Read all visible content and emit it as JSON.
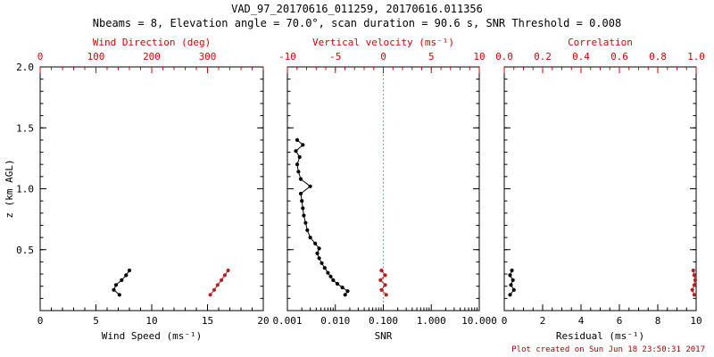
{
  "header": {
    "title": "VAD_97_20170616_011259, 20170616.011356",
    "subtitle": "Nbeams = 8, Elevation angle = 70.0°, scan duration = 90.6 s, SNR Threshold = 0.008"
  },
  "footer": {
    "created": "Plot created on Sun Jun 18 23:50:31 2017"
  },
  "colors": {
    "axis_red": "#dd0000",
    "data_black": "#000000",
    "data_red": "#b22222",
    "refline_red": "#dd5555",
    "footer_red": "#aa0000"
  },
  "y_axis": {
    "label": "z (km AGL)",
    "range": [
      0,
      2
    ],
    "minor_step": 0.1,
    "ticks": [
      {
        "v": 0.0,
        "t": ""
      },
      {
        "v": 0.5,
        "t": "0.5"
      },
      {
        "v": 1.0,
        "t": "1.0"
      },
      {
        "v": 1.5,
        "t": "1.5"
      },
      {
        "v": 2.0,
        "t": "2.0"
      }
    ]
  },
  "chart_data": [
    {
      "id": "wind",
      "type": "scatter",
      "bottom": {
        "label": "Wind Speed (ms⁻¹)",
        "scale": "linear",
        "range": [
          0,
          20
        ],
        "minor_step": 1,
        "ticks": [
          {
            "v": 0,
            "t": "0"
          },
          {
            "v": 5,
            "t": "5"
          },
          {
            "v": 10,
            "t": "10"
          },
          {
            "v": 15,
            "t": "15"
          },
          {
            "v": 20,
            "t": "20"
          }
        ]
      },
      "top": {
        "label": "Wind Direction (deg)",
        "scale": "linear",
        "range": [
          0,
          400
        ],
        "minor_step": 20,
        "ticks": [
          {
            "v": 0,
            "t": "0"
          },
          {
            "v": 100,
            "t": "100"
          },
          {
            "v": 200,
            "t": "200"
          },
          {
            "v": 300,
            "t": "300"
          }
        ]
      },
      "series": [
        {
          "name": "wind-speed",
          "axis": "bottom",
          "color": "#000000",
          "z": [
            0.13,
            0.17,
            0.21,
            0.25,
            0.29,
            0.33
          ],
          "x": [
            7.1,
            6.6,
            6.8,
            7.3,
            7.7,
            8.0
          ]
        },
        {
          "name": "wind-direction",
          "axis": "top",
          "color": "#b22222",
          "z": [
            0.13,
            0.17,
            0.21,
            0.25,
            0.29,
            0.33
          ],
          "x": [
            305,
            312,
            318,
            325,
            331,
            337
          ]
        }
      ]
    },
    {
      "id": "snr",
      "type": "scatter",
      "refline": {
        "axis": "top",
        "v": 0
      },
      "bottom": {
        "label": "SNR",
        "scale": "log",
        "range": [
          0.001,
          10
        ],
        "ticks": [
          {
            "v": 0.001,
            "t": "0.001"
          },
          {
            "v": 0.01,
            "t": "0.010"
          },
          {
            "v": 0.1,
            "t": "0.100"
          },
          {
            "v": 1,
            "t": "1.000"
          },
          {
            "v": 10,
            "t": "10.000"
          }
        ]
      },
      "top": {
        "label": "Vertical velocity (ms⁻¹)",
        "scale": "linear",
        "range": [
          -10,
          10
        ],
        "minor_step": 1,
        "ticks": [
          {
            "v": -10,
            "t": "-10"
          },
          {
            "v": -5,
            "t": "-5"
          },
          {
            "v": 0,
            "t": "0"
          },
          {
            "v": 5,
            "t": "5"
          },
          {
            "v": 10,
            "t": "10"
          }
        ]
      },
      "series": [
        {
          "name": "snr-profile",
          "axis": "bottom",
          "color": "#000000",
          "z": [
            0.13,
            0.16,
            0.19,
            0.22,
            0.25,
            0.28,
            0.31,
            0.35,
            0.39,
            0.43,
            0.47,
            0.51,
            0.55,
            0.6,
            0.66,
            0.72,
            0.78,
            0.84,
            0.9,
            0.96,
            1.02,
            1.08,
            1.14,
            1.2,
            1.26,
            1.31,
            1.36,
            1.4
          ],
          "x": [
            0.016,
            0.018,
            0.014,
            0.011,
            0.009,
            0.008,
            0.007,
            0.006,
            0.0052,
            0.0046,
            0.0042,
            0.0046,
            0.0038,
            0.003,
            0.0026,
            0.0024,
            0.0022,
            0.0021,
            0.002,
            0.0019,
            0.003,
            0.0019,
            0.0017,
            0.0016,
            0.0018,
            0.0015,
            0.0021,
            0.0016
          ]
        },
        {
          "name": "vertical-velocity",
          "axis": "top",
          "color": "#b22222",
          "z": [
            0.13,
            0.17,
            0.21,
            0.25,
            0.29,
            0.33
          ],
          "x": [
            0.3,
            -0.2,
            0.2,
            -0.3,
            0.2,
            -0.2
          ]
        }
      ]
    },
    {
      "id": "residual",
      "type": "scatter",
      "bottom": {
        "label": "Residual (ms⁻¹)",
        "scale": "linear",
        "range": [
          0,
          10
        ],
        "minor_step": 0.5,
        "ticks": [
          {
            "v": 0,
            "t": "0"
          },
          {
            "v": 2,
            "t": "2"
          },
          {
            "v": 4,
            "t": "4"
          },
          {
            "v": 6,
            "t": "6"
          },
          {
            "v": 8,
            "t": "8"
          },
          {
            "v": 10,
            "t": "10"
          }
        ]
      },
      "top": {
        "label": "Correlation",
        "scale": "linear",
        "range": [
          0,
          1
        ],
        "minor_step": 0.05,
        "ticks": [
          {
            "v": 0.0,
            "t": "0.0"
          },
          {
            "v": 0.2,
            "t": "0.2"
          },
          {
            "v": 0.4,
            "t": "0.4"
          },
          {
            "v": 0.6,
            "t": "0.6"
          },
          {
            "v": 0.8,
            "t": "0.8"
          },
          {
            "v": 1.0,
            "t": "1.0"
          }
        ]
      },
      "series": [
        {
          "name": "residual",
          "axis": "bottom",
          "color": "#000000",
          "z": [
            0.13,
            0.17,
            0.21,
            0.25,
            0.29,
            0.33
          ],
          "x": [
            0.3,
            0.5,
            0.35,
            0.45,
            0.3,
            0.4
          ]
        },
        {
          "name": "correlation",
          "axis": "top",
          "color": "#b22222",
          "z": [
            0.13,
            0.17,
            0.21,
            0.25,
            0.29,
            0.33
          ],
          "x": [
            0.99,
            0.98,
            0.99,
            0.995,
            0.99,
            0.985
          ]
        }
      ]
    }
  ]
}
